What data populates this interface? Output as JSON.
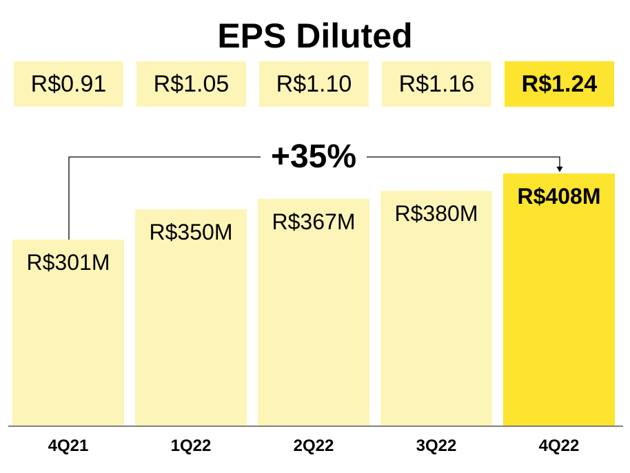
{
  "title": "EPS Diluted",
  "eps": [
    "R$0.91",
    "R$1.05",
    "R$1.10",
    "R$1.16",
    "R$1.24"
  ],
  "growth_label": "+35%",
  "colors": {
    "bar": "#fdf5b8",
    "highlight": "#fce42f",
    "text": "#000000"
  },
  "chart_data": {
    "type": "bar",
    "categories": [
      "4Q21",
      "1Q22",
      "2Q22",
      "3Q22",
      "4Q22"
    ],
    "values": [
      301,
      350,
      367,
      380,
      408
    ],
    "value_labels": [
      "R$301M",
      "R$350M",
      "R$367M",
      "R$380M",
      "R$408M"
    ],
    "highlight_index": 4,
    "grid": false
  }
}
